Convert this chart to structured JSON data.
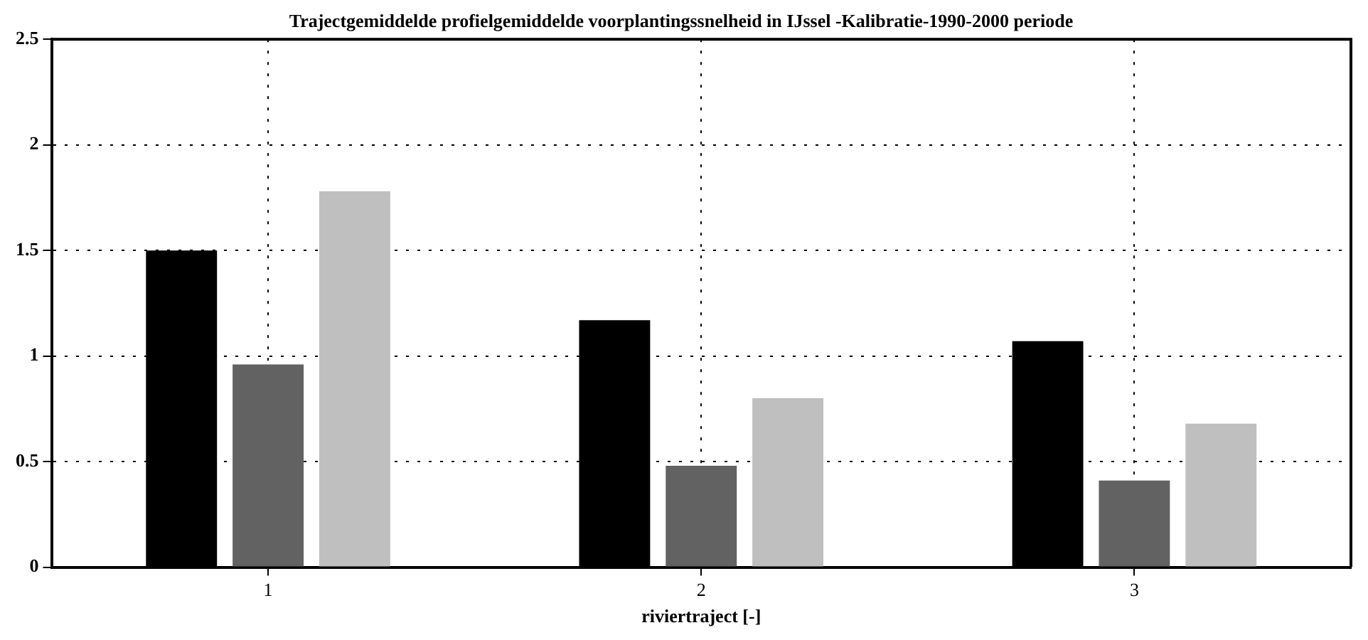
{
  "chart_data": {
    "type": "bar",
    "title": "Trajectgemiddelde profielgemiddelde voorplantingssnelheid in IJssel -Kalibratie-1990-2000 periode",
    "xlabel": "riviertraject [-]",
    "categories": [
      "1",
      "2",
      "3"
    ],
    "series": [
      {
        "color": "#000000",
        "values": [
          1.5,
          1.17,
          1.07
        ]
      },
      {
        "color": "#626262",
        "values": [
          0.96,
          0.48,
          0.41
        ]
      },
      {
        "color": "#bfbfbf",
        "values": [
          1.78,
          0.8,
          0.68
        ]
      }
    ],
    "ylim": [
      0,
      2.5
    ],
    "yticks": [
      0,
      0.5,
      1,
      1.5,
      2,
      2.5
    ],
    "grid": true,
    "legend": false
  }
}
